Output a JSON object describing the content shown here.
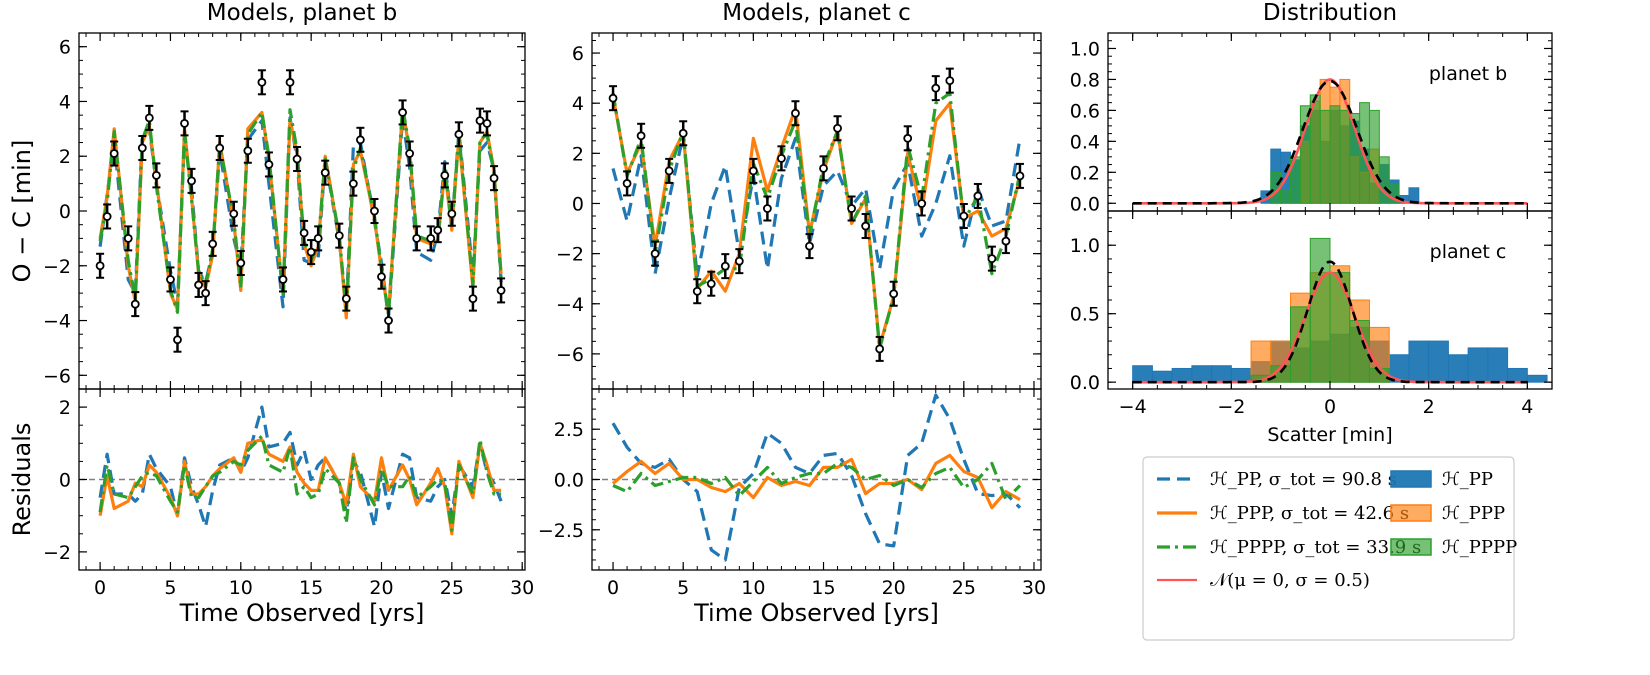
{
  "chart_data": [
    {
      "type": "line",
      "panel": "b-main",
      "title": "Models, planet b",
      "xlabel": "",
      "ylabel": "O − C [min]",
      "xlim": [
        -1.5,
        30.2
      ],
      "ylim": [
        -6.5,
        6.5
      ],
      "yticks": [
        -6,
        -4,
        -2,
        0,
        2,
        4,
        6
      ],
      "x": [
        0,
        0.5,
        1,
        2,
        2.5,
        3,
        3.5,
        4,
        5,
        5.5,
        6,
        6.5,
        7,
        7.5,
        8,
        8.5,
        9.5,
        10,
        10.5,
        11.5,
        12,
        13,
        13.5,
        14,
        14.5,
        15,
        15.5,
        16,
        17,
        17.5,
        18,
        18.5,
        19.5,
        20,
        20.5,
        21.5,
        22,
        22.5,
        23.5,
        24,
        24.5,
        25,
        25.5,
        26.5,
        27,
        27.5,
        28,
        28.5
      ],
      "observations": [
        -2.0,
        -0.2,
        2.1,
        -1.0,
        -3.4,
        2.3,
        3.4,
        1.3,
        -2.5,
        -4.7,
        3.2,
        1.1,
        -2.7,
        -3.0,
        -1.2,
        2.3,
        -0.1,
        -1.9,
        2.2,
        4.7,
        1.7,
        -2.5,
        4.7,
        1.9,
        -0.8,
        -1.5,
        -1.0,
        1.4,
        -0.9,
        -3.2,
        1.0,
        2.6,
        0.0,
        -2.4,
        -4.0,
        3.6,
        2.1,
        -1.0,
        -1.0,
        -0.7,
        1.3,
        -0.1,
        2.8,
        -3.2,
        3.3,
        3.2,
        1.2,
        -2.9
      ],
      "series": [
        {
          "name": "H_PP",
          "values": [
            -1.3,
            0.6,
            2.5,
            -2.5,
            -3.0,
            2.8,
            3.0,
            1.0,
            -2.2,
            -3.4,
            2.7,
            0.8,
            -2.2,
            -2.6,
            -1.5,
            2.2,
            -1.0,
            -2.1,
            2.6,
            3.3,
            1.0,
            -3.5,
            3.4,
            1.9,
            -1.8,
            -1.9,
            -1.7,
            1.9,
            -1.1,
            -3.6,
            2.4,
            2.5,
            -0.4,
            -1.9,
            -3.9,
            3.4,
            1.6,
            -1.5,
            -1.8,
            -0.8,
            1.8,
            -0.6,
            2.9,
            -2.3,
            2.2,
            2.5,
            1.5,
            -2.6
          ]
        },
        {
          "name": "H_PPP",
          "values": [
            -1.0,
            0.5,
            3.0,
            -2.0,
            -3.3,
            2.5,
            3.1,
            1.1,
            -3.0,
            -3.6,
            3.0,
            0.5,
            -2.3,
            -2.8,
            -1.6,
            2.5,
            -0.4,
            -2.9,
            3.0,
            3.6,
            1.9,
            -3.0,
            3.3,
            2.1,
            -1.2,
            -2.0,
            -1.3,
            2.0,
            -1.0,
            -3.9,
            1.7,
            2.2,
            -0.3,
            -2.2,
            -3.7,
            3.7,
            2.2,
            -1.0,
            -1.2,
            -1.1,
            1.5,
            -0.7,
            2.7,
            -2.8,
            2.5,
            2.9,
            1.5,
            -2.3
          ]
        },
        {
          "name": "H_PPPP",
          "values": [
            -1.1,
            0.3,
            2.9,
            -1.8,
            -3.2,
            2.6,
            3.3,
            0.9,
            -2.9,
            -3.7,
            2.9,
            0.4,
            -2.2,
            -2.7,
            -1.4,
            2.4,
            -0.3,
            -2.8,
            2.8,
            3.6,
            2.0,
            -3.1,
            3.7,
            2.2,
            -1.1,
            -1.8,
            -1.2,
            1.9,
            -0.9,
            -3.7,
            1.5,
            2.3,
            -0.2,
            -2.1,
            -3.8,
            3.8,
            2.3,
            -0.9,
            -1.1,
            -1.1,
            1.6,
            -0.6,
            2.8,
            -2.7,
            2.6,
            2.8,
            1.4,
            -2.4
          ]
        }
      ]
    },
    {
      "type": "line",
      "panel": "b-resid",
      "xlabel": "Time Observed [yrs]",
      "ylabel": "Residuals",
      "xlim": [
        -1.5,
        30.2
      ],
      "ylim": [
        -2.5,
        2.5
      ],
      "xticks": [
        0,
        5,
        10,
        15,
        20,
        25,
        30
      ],
      "yticks": [
        -2,
        0,
        2
      ],
      "x": [
        0,
        0.5,
        1,
        2,
        2.5,
        3,
        3.5,
        4,
        5,
        5.5,
        6,
        6.5,
        7,
        7.5,
        8,
        8.5,
        9.5,
        10,
        10.5,
        11.5,
        12,
        13,
        13.5,
        14,
        14.5,
        15,
        15.5,
        16,
        17,
        17.5,
        18,
        18.5,
        19.5,
        20,
        20.5,
        21.5,
        22,
        22.5,
        23.5,
        24,
        24.5,
        25,
        25.5,
        26.5,
        27,
        27.5,
        28,
        28.5
      ],
      "series": [
        {
          "name": "H_PP",
          "values": [
            -0.5,
            0.7,
            -0.4,
            -0.4,
            -0.6,
            -0.4,
            0.7,
            0.3,
            -0.2,
            -1.0,
            0.6,
            -0.2,
            -0.7,
            -1.3,
            -0.3,
            0.4,
            0.6,
            0.2,
            0.6,
            2.0,
            0.9,
            1.0,
            1.3,
            0.4,
            0.8,
            0.0,
            0.4,
            0.6,
            -0.1,
            -0.9,
            0.5,
            0.2,
            -1.3,
            0.2,
            -0.8,
            0.7,
            0.6,
            -0.5,
            -0.6,
            -0.2,
            0.0,
            -1.0,
            0.4,
            -0.2,
            1.0,
            0.2,
            -0.1,
            -0.6
          ]
        },
        {
          "name": "H_PPP",
          "values": [
            -1.0,
            0.1,
            -0.8,
            -0.6,
            -0.1,
            -0.2,
            0.4,
            0.2,
            -0.5,
            -1.0,
            0.5,
            -0.4,
            -0.4,
            -0.2,
            0.1,
            0.3,
            0.6,
            0.2,
            1.0,
            1.1,
            0.7,
            0.5,
            0.9,
            0.2,
            -0.1,
            -0.3,
            -0.3,
            0.6,
            -0.1,
            -0.7,
            0.7,
            -0.2,
            -0.6,
            0.6,
            -0.3,
            0.4,
            0.0,
            -0.7,
            -0.1,
            0.3,
            -0.2,
            -1.5,
            0.5,
            -0.5,
            1.0,
            0.4,
            -0.3,
            -0.3
          ]
        },
        {
          "name": "H_PPPP",
          "values": [
            -0.9,
            0.4,
            -0.4,
            -0.5,
            -0.2,
            0.1,
            0.2,
            0.1,
            -0.6,
            -0.9,
            0.4,
            -0.5,
            -0.5,
            -0.2,
            0.1,
            0.2,
            0.5,
            0.4,
            0.8,
            1.2,
            0.4,
            0.2,
            0.9,
            -0.4,
            -0.2,
            -0.5,
            -0.4,
            0.3,
            -0.1,
            -1.2,
            0.6,
            0.0,
            -0.7,
            0.3,
            -0.2,
            -0.2,
            0.1,
            -0.5,
            -0.2,
            0.0,
            -0.1,
            -1.4,
            0.4,
            -0.4,
            1.1,
            0.2,
            -0.4,
            -0.4
          ]
        }
      ]
    },
    {
      "type": "line",
      "panel": "c-main",
      "title": "Models, planet c",
      "xlabel": "",
      "ylabel": "",
      "xlim": [
        -1.5,
        30.5
      ],
      "ylim": [
        -7.4,
        6.8
      ],
      "yticks": [
        -6,
        -4,
        -2,
        0,
        2,
        4,
        6
      ],
      "x": [
        0,
        1,
        2,
        3,
        4,
        5,
        6,
        7,
        8,
        9,
        10,
        11,
        12,
        13,
        14,
        15,
        16,
        17,
        18,
        19,
        20,
        21,
        22,
        23,
        24,
        25,
        26,
        27,
        28,
        29
      ],
      "observations": [
        4.2,
        0.8,
        2.7,
        -2.0,
        1.3,
        2.8,
        -3.5,
        -3.2,
        -2.5,
        -2.3,
        1.3,
        -0.2,
        1.8,
        3.6,
        -1.7,
        1.4,
        3.0,
        -0.2,
        -0.9,
        -5.8,
        -3.6,
        2.6,
        0.0,
        4.6,
        4.9,
        -0.5,
        0.3,
        -2.2,
        -1.5,
        1.1
      ],
      "series": [
        {
          "name": "H_PP",
          "values": [
            1.4,
            -0.7,
            1.9,
            -2.8,
            0.2,
            2.7,
            -2.9,
            0.0,
            1.5,
            -2.0,
            1.1,
            -2.6,
            1.0,
            2.6,
            -1.6,
            0.7,
            1.3,
            -0.1,
            0.6,
            -2.6,
            0.6,
            1.6,
            -1.3,
            0.0,
            1.9,
            -1.7,
            0.6,
            -0.9,
            -0.7,
            2.6
          ]
        },
        {
          "name": "H_PPP",
          "values": [
            4.3,
            1.2,
            2.4,
            -1.7,
            1.7,
            2.8,
            -3.4,
            -2.7,
            -3.5,
            -2.0,
            2.6,
            0.5,
            2.2,
            3.8,
            -1.2,
            1.3,
            2.9,
            -0.8,
            0.2,
            -5.7,
            -3.7,
            2.0,
            -0.3,
            3.3,
            4.0,
            -0.6,
            -0.3,
            -1.3,
            -1.0,
            1.0
          ]
        },
        {
          "name": "H_PPPP",
          "values": [
            4.4,
            1.1,
            2.6,
            -2.0,
            1.3,
            2.9,
            -3.3,
            -3.0,
            -2.6,
            -2.6,
            1.6,
            0.2,
            1.9,
            3.3,
            -1.3,
            1.5,
            2.9,
            -0.8,
            0.3,
            -5.8,
            -3.7,
            2.3,
            0.2,
            4.0,
            4.4,
            -0.7,
            0.3,
            -2.8,
            -1.3,
            1.2
          ]
        }
      ]
    },
    {
      "type": "line",
      "panel": "c-resid",
      "xlabel": "Time Observed [yrs]",
      "ylabel": "",
      "xlim": [
        -1.5,
        30.5
      ],
      "ylim": [
        -4.5,
        4.5
      ],
      "xticks": [
        0,
        5,
        10,
        15,
        20,
        25,
        30
      ],
      "yticks": [
        -2.5,
        0.0,
        2.5
      ],
      "ytick_labels": [
        "−2.5",
        "0.0",
        "2.5"
      ],
      "x": [
        0,
        1,
        2,
        3,
        4,
        5,
        6,
        7,
        8,
        9,
        10,
        11,
        12,
        13,
        14,
        15,
        16,
        17,
        18,
        19,
        20,
        21,
        22,
        23,
        24,
        25,
        26,
        27,
        28,
        29
      ],
      "series": [
        {
          "name": "H_PP",
          "values": [
            2.8,
            1.6,
            0.8,
            0.6,
            1.0,
            0.0,
            -0.6,
            -3.5,
            -4.0,
            -0.4,
            0.3,
            2.3,
            1.8,
            0.6,
            0.3,
            1.2,
            1.3,
            0.2,
            -1.7,
            -3.2,
            -3.3,
            1.2,
            1.8,
            4.2,
            3.0,
            1.0,
            -0.7,
            -0.8,
            -0.7,
            -1.4
          ]
        },
        {
          "name": "H_PPP",
          "values": [
            -0.2,
            0.4,
            0.9,
            0.3,
            0.8,
            0.0,
            0.0,
            -0.4,
            -0.6,
            -0.2,
            -0.9,
            0.1,
            -0.3,
            -0.1,
            -0.3,
            0.6,
            0.6,
            1.0,
            -0.7,
            -0.2,
            -0.2,
            0.0,
            -0.5,
            0.8,
            1.2,
            0.4,
            0.1,
            -1.4,
            -0.6,
            -1.0
          ]
        },
        {
          "name": "H_PPPP",
          "values": [
            -0.3,
            -0.6,
            0.3,
            -0.3,
            -0.1,
            0.1,
            0.1,
            -0.2,
            0.1,
            -0.8,
            -0.1,
            0.6,
            -0.2,
            0.1,
            0.3,
            0.3,
            0.8,
            0.6,
            0.0,
            0.2,
            -0.3,
            0.0,
            -0.4,
            0.3,
            0.6,
            -0.4,
            0.0,
            0.8,
            -1.0,
            -0.3
          ]
        }
      ]
    },
    {
      "type": "histogram",
      "panel": "dist-b",
      "title": "Distribution",
      "label": "planet b",
      "xlim": [
        -4.5,
        4.5
      ],
      "ylim": [
        -0.05,
        1.1
      ],
      "yticks": [
        0.0,
        0.2,
        0.4,
        0.6,
        0.8,
        1.0
      ],
      "ytick_labels": [
        "0.0",
        "0.2",
        "0.4",
        "0.6",
        "0.8",
        "1.0"
      ],
      "bin_edges": [
        -1.6,
        -1.4,
        -1.2,
        -1.0,
        -0.8,
        -0.6,
        -0.4,
        -0.2,
        0.0,
        0.2,
        0.4,
        0.6,
        0.8,
        1.0,
        1.2,
        1.4,
        1.6,
        1.8
      ],
      "series": [
        {
          "name": "H_PP",
          "color": "#1f77b4",
          "values": [
            0.0,
            0.08,
            0.35,
            0.33,
            0.28,
            0.5,
            0.6,
            0.4,
            0.6,
            0.5,
            0.53,
            0.35,
            0.13,
            0.25,
            0.15,
            0.05,
            0.1
          ]
        },
        {
          "name": "H_PPP",
          "color": "#ff7f0e",
          "values": [
            0.0,
            0.0,
            0.0,
            0.0,
            0.0,
            0.4,
            0.66,
            0.8,
            0.75,
            0.8,
            0.3,
            0.2,
            0.35,
            0.0,
            0.0,
            0.0,
            0.0
          ]
        },
        {
          "name": "H_PPPP",
          "color": "#2ca02c",
          "values": [
            0.0,
            0.0,
            0.2,
            0.08,
            0.3,
            0.63,
            0.7,
            0.6,
            0.63,
            0.6,
            0.58,
            0.65,
            0.6,
            0.3,
            0.12,
            0.0,
            0.0
          ]
        }
      ],
      "curves": [
        {
          "name": "N(mu=0, sigma=0.5)",
          "type": "gaussian",
          "mu": 0,
          "sigma": 0.5,
          "peak": 0.8,
          "color": "#ff5555"
        },
        {
          "name": "fit",
          "type": "gaussian",
          "mu": 0,
          "sigma": 0.55,
          "peak": 0.79,
          "color": "#000000",
          "style": "dashed"
        }
      ],
      "baseline_x": [
        -4,
        4
      ]
    },
    {
      "type": "histogram",
      "panel": "dist-c",
      "label": "planet c",
      "xlabel": "Scatter [min]",
      "xlim": [
        -4.5,
        4.5
      ],
      "ylim": [
        -0.05,
        1.25
      ],
      "xticks": [
        -4,
        -2,
        0,
        2,
        4
      ],
      "xtick_labels": [
        "−4",
        "−2",
        "0",
        "2",
        "4"
      ],
      "yticks": [
        0.0,
        0.5,
        1.0
      ],
      "ytick_labels": [
        "0.0",
        "0.5",
        "1.0"
      ],
      "bin_edges": [
        -4.0,
        -3.6,
        -3.2,
        -2.8,
        -2.4,
        -2.0,
        -1.6,
        -1.2,
        -0.8,
        -0.4,
        0.0,
        0.4,
        0.8,
        1.2,
        1.6,
        2.0,
        2.4,
        2.8,
        3.2,
        3.6,
        4.0,
        4.4
      ],
      "series": [
        {
          "name": "H_PP",
          "color": "#1f77b4",
          "values": [
            0.12,
            0.08,
            0.1,
            0.12,
            0.12,
            0.1,
            0.15,
            0.3,
            0.25,
            0.3,
            0.35,
            0.4,
            0.3,
            0.2,
            0.3,
            0.3,
            0.2,
            0.25,
            0.25,
            0.1,
            0.05
          ]
        },
        {
          "name": "H_PPP",
          "color": "#ff7f0e",
          "values": [
            0.0,
            0.0,
            0.0,
            0.0,
            0.0,
            0.0,
            0.3,
            0.3,
            0.65,
            0.8,
            0.85,
            0.6,
            0.4,
            0.0,
            0.0,
            0.0,
            0.0,
            0.0,
            0.0,
            0.0,
            0.0
          ]
        },
        {
          "name": "H_PPPP",
          "color": "#2ca02c",
          "values": [
            0.0,
            0.0,
            0.0,
            0.0,
            0.0,
            0.0,
            0.05,
            0.12,
            0.55,
            1.05,
            0.8,
            0.45,
            0.1,
            0.0,
            0.0,
            0.0,
            0.0,
            0.0,
            0.0,
            0.0,
            0.0
          ]
        }
      ],
      "curves": [
        {
          "name": "N(mu=0, sigma=0.5)",
          "type": "gaussian",
          "mu": 0,
          "sigma": 0.5,
          "peak": 0.8,
          "color": "#ff5555"
        },
        {
          "name": "fit",
          "type": "gaussian",
          "mu": 0,
          "sigma": 0.45,
          "peak": 0.88,
          "color": "#000000",
          "style": "dashed"
        }
      ],
      "baseline_x": [
        -4,
        4
      ]
    }
  ],
  "legend": {
    "lines": [
      {
        "label": "ℋ_PP, σ_tot = 90.8 s",
        "color": "#1f77b4",
        "style": "dashed"
      },
      {
        "label": "ℋ_PPP, σ_tot = 42.6 s",
        "color": "#ff7f0e",
        "style": "solid"
      },
      {
        "label": "ℋ_PPPP, σ_tot = 33.9 s",
        "color": "#2ca02c",
        "style": "dashdot"
      },
      {
        "label": "𝒩(μ = 0, σ = 0.5)",
        "color": "#ff5555",
        "style": "solid"
      }
    ],
    "patches": [
      {
        "label": "ℋ_PP",
        "color": "#1f77b4"
      },
      {
        "label": "ℋ_PPP",
        "color": "#ff7f0e"
      },
      {
        "label": "ℋ_PPPP",
        "color": "#2ca02c"
      }
    ]
  }
}
